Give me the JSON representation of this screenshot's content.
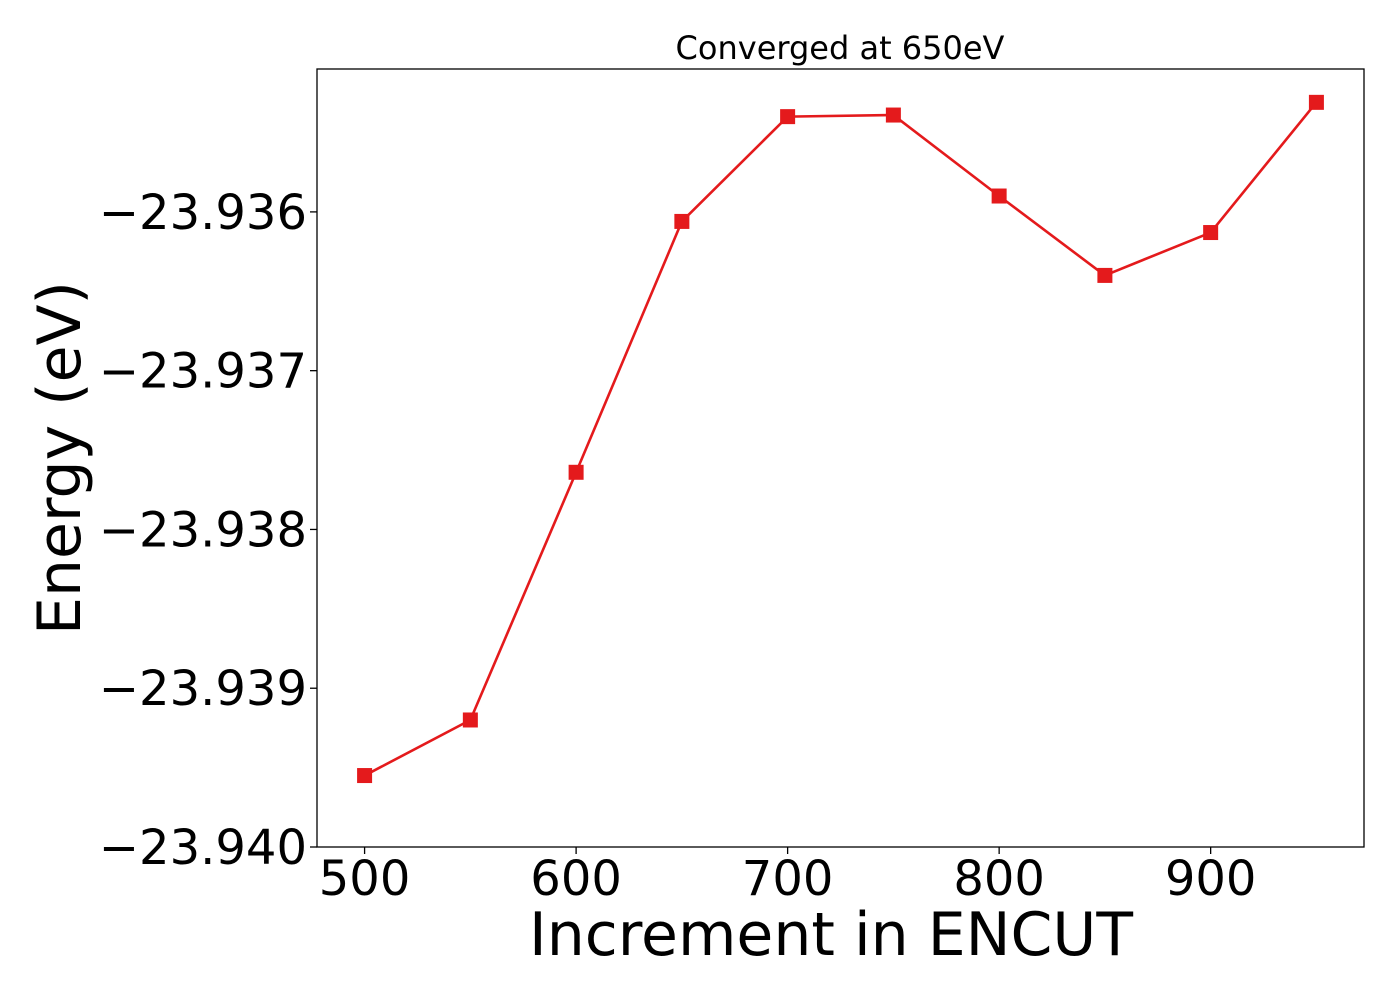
{
  "chart_data": {
    "type": "line",
    "title": "Converged at 650eV",
    "xlabel": "Increment in ENCUT",
    "ylabel": "Energy (eV)",
    "xlim": [
      477.5,
      972.5
    ],
    "ylim": [
      -23.94,
      -23.9351
    ],
    "xticks": [
      500,
      600,
      700,
      800,
      900
    ],
    "xtick_labels": [
      "500",
      "600",
      "700",
      "800",
      "900"
    ],
    "yticks": [
      -23.936,
      -23.937,
      -23.938,
      -23.939,
      -23.94
    ],
    "ytick_labels": [
      "−23.936",
      "−23.937",
      "−23.938",
      "−23.939",
      "−23.940"
    ],
    "grid": false,
    "legend": "none",
    "series": [
      {
        "color": "#e41a1c",
        "marker": "square",
        "x": [
          500,
          550,
          600,
          650,
          700,
          750,
          800,
          850,
          900,
          950
        ],
        "y": [
          -23.93955,
          -23.9392,
          -23.93764,
          -23.93606,
          -23.9354,
          -23.93539,
          -23.9359,
          -23.9364,
          -23.93613,
          -23.93531
        ]
      }
    ]
  }
}
